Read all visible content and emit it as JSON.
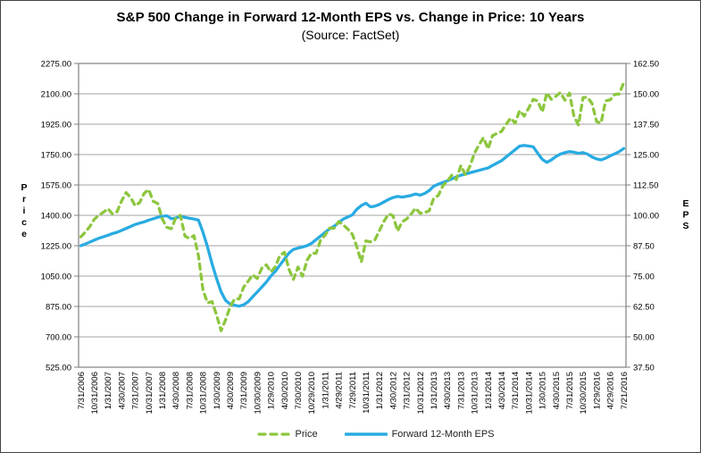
{
  "title": "S&P 500 Change in Forward 12-Month EPS vs. Change in Price: 10 Years",
  "subtitle": "(Source: FactSet)",
  "chart_data": {
    "type": "line",
    "grid": "horizontal",
    "legend_position": "bottom",
    "interval_hint": "monthly points, quarterly axis labels",
    "x_tick_labels": [
      "7/31/2006",
      "10/31/2006",
      "1/31/2007",
      "4/30/2007",
      "7/31/2007",
      "10/31/2007",
      "1/31/2008",
      "4/30/2008",
      "7/31/2008",
      "10/31/2008",
      "1/30/2009",
      "4/30/2009",
      "7/31/2009",
      "10/30/2009",
      "1/29/2010",
      "4/30/2010",
      "7/30/2010",
      "10/29/2010",
      "1/31/2011",
      "4/29/2011",
      "7/29/2011",
      "10/31/2011",
      "1/31/2012",
      "4/30/2012",
      "7/31/2012",
      "10/31/2012",
      "1/31/2013",
      "4/30/2013",
      "7/31/2013",
      "10/31/2013",
      "1/31/2014",
      "4/30/2014",
      "7/31/2014",
      "10/31/2014",
      "1/30/2015",
      "4/30/2015",
      "7/31/2015",
      "10/30/2015",
      "1/29/2016",
      "4/29/2016",
      "7/21/2016"
    ],
    "left_axis": {
      "title": "Price",
      "min": 525,
      "max": 2275,
      "step": 175,
      "tick_labels": [
        "2275.00",
        "2100.00",
        "1925.00",
        "1750.00",
        "1575.00",
        "1400.00",
        "1225.00",
        "1050.00",
        "875.00",
        "700.00",
        "525.00"
      ]
    },
    "right_axis": {
      "title": "EPS",
      "min": 37.5,
      "max": 162.5,
      "step": 12.5,
      "tick_labels": [
        "162.50",
        "150.00",
        "137.50",
        "125.00",
        "112.50",
        "100.00",
        "87.50",
        "75.00",
        "62.50",
        "50.00",
        "37.50"
      ]
    },
    "series": [
      {
        "name": "Price",
        "axis": "left",
        "color": "#8DC63F",
        "style": "dashed",
        "values": [
          1276,
          1304,
          1336,
          1378,
          1401,
          1418,
          1438,
          1407,
          1421,
          1482,
          1531,
          1503,
          1455,
          1474,
          1527,
          1549,
          1481,
          1468,
          1379,
          1331,
          1323,
          1386,
          1400,
          1280,
          1267,
          1283,
          1166,
          969,
          896,
          903,
          826,
          735,
          798,
          873,
          919,
          919,
          987,
          1021,
          1057,
          1036,
          1096,
          1115,
          1074,
          1104,
          1169,
          1187,
          1089,
          1031,
          1102,
          1049,
          1141,
          1183,
          1181,
          1258,
          1286,
          1327,
          1326,
          1364,
          1345,
          1321,
          1292,
          1219,
          1131,
          1253,
          1247,
          1258,
          1312,
          1366,
          1408,
          1398,
          1310,
          1362,
          1379,
          1407,
          1441,
          1412,
          1416,
          1426,
          1498,
          1515,
          1569,
          1598,
          1631,
          1606,
          1686,
          1633,
          1682,
          1757,
          1806,
          1848,
          1783,
          1859,
          1872,
          1884,
          1924,
          1960,
          1931,
          2003,
          1972,
          2018,
          2068,
          2059,
          1995,
          2105,
          2068,
          2086,
          2107,
          2063,
          2104,
          1972,
          1920,
          2079,
          2080,
          2044,
          1940,
          1932,
          2060,
          2065,
          2097,
          2099,
          2165
        ]
      },
      {
        "name": "Forward 12-Month EPS",
        "axis": "right",
        "color": "#29ABE2",
        "style": "solid",
        "values": [
          87.5,
          88.2,
          89.0,
          89.8,
          90.6,
          91.2,
          91.8,
          92.5,
          93.0,
          93.8,
          94.6,
          95.4,
          96.2,
          96.8,
          97.3,
          98.0,
          98.6,
          99.2,
          99.6,
          99.8,
          98.6,
          98.9,
          99.6,
          99.2,
          98.8,
          98.5,
          98.0,
          93.0,
          87.0,
          80.0,
          74.0,
          68.5,
          65.0,
          63.5,
          63.0,
          62.6,
          63.2,
          64.5,
          66.5,
          68.5,
          70.5,
          72.5,
          75.0,
          77.0,
          79.5,
          82.0,
          84.5,
          86.0,
          86.5,
          87.0,
          87.5,
          88.5,
          90.0,
          91.5,
          93.0,
          94.5,
          95.5,
          97.0,
          98.5,
          99.3,
          100.2,
          102.5,
          104.0,
          105.0,
          103.5,
          103.8,
          104.5,
          105.5,
          106.5,
          107.3,
          107.8,
          107.5,
          107.8,
          108.2,
          108.8,
          108.3,
          109.0,
          110.2,
          112.0,
          112.8,
          113.5,
          114.2,
          115.0,
          115.8,
          116.5,
          117.0,
          117.5,
          118.0,
          118.5,
          119.0,
          119.5,
          120.5,
          121.5,
          122.5,
          124.0,
          125.5,
          127.0,
          128.5,
          128.8,
          128.5,
          128.2,
          125.5,
          123.0,
          121.8,
          122.8,
          124.2,
          125.2,
          125.8,
          126.2,
          126.0,
          125.5,
          125.8,
          125.2,
          124.0,
          123.2,
          122.8,
          123.5,
          124.5,
          125.3,
          126.2,
          127.5
        ]
      }
    ],
    "style_colors": {
      "gridline": "#A3A3A3",
      "axis_frame": "#808080",
      "text": "#000000"
    }
  }
}
